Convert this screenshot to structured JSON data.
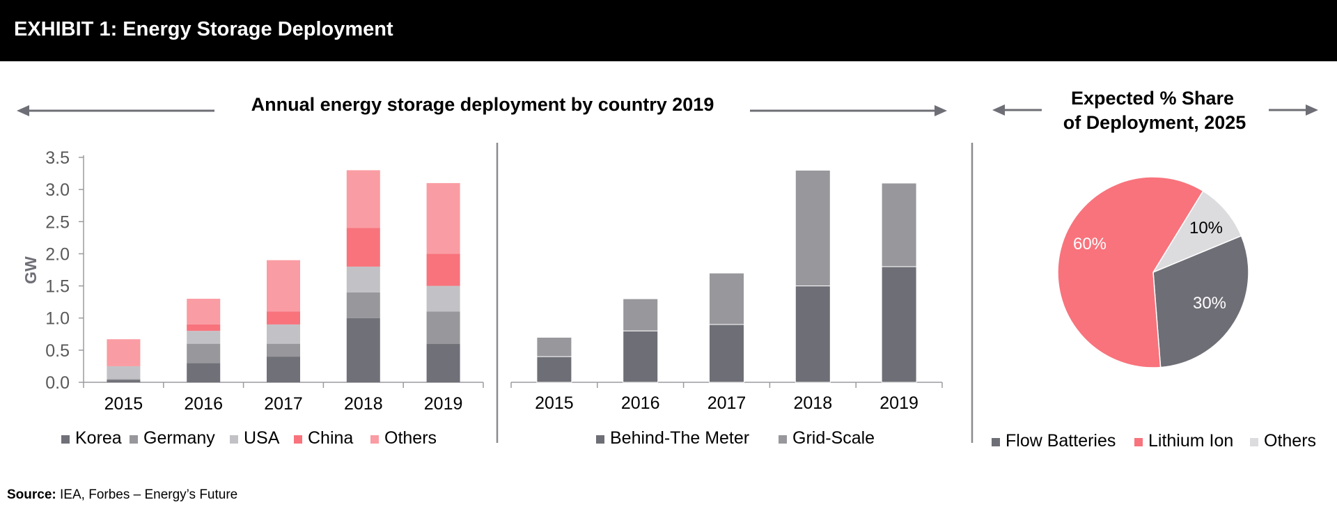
{
  "header": {
    "title": "EXHIBIT 1: Energy Storage Deployment"
  },
  "source": {
    "label": "Source:",
    "text": "IEA, Forbes – Energy’s Future"
  },
  "colors": {
    "korea": "#707078",
    "germany": "#97979c",
    "usa": "#c2c2c6",
    "china": "#f8737c",
    "others": "#fa9ca3",
    "behind": "#6e6e76",
    "grid": "#97979c",
    "flow": "#6e6e76",
    "lithium": "#f8737c",
    "pie_others": "#dcdcde"
  },
  "chart_data": [
    {
      "type": "bar",
      "stacked": true,
      "title": "Annual energy storage deployment by country 2019",
      "ylabel": "GW",
      "ylim": [
        0,
        3.5
      ],
      "yticks": [
        "0.0",
        "0.5",
        "1.0",
        "1.5",
        "2.0",
        "2.5",
        "3.0",
        "3.5"
      ],
      "categories": [
        "2015",
        "2016",
        "2017",
        "2018",
        "2019"
      ],
      "legend_position": "bottom",
      "series": [
        {
          "name": "Korea",
          "color_key": "korea",
          "values": [
            0.04,
            0.3,
            0.4,
            1.0,
            0.6
          ]
        },
        {
          "name": "Germany",
          "color_key": "germany",
          "values": [
            0.01,
            0.3,
            0.2,
            0.4,
            0.5
          ]
        },
        {
          "name": "USA",
          "color_key": "usa",
          "values": [
            0.2,
            0.2,
            0.3,
            0.4,
            0.4
          ]
        },
        {
          "name": "China",
          "color_key": "china",
          "values": [
            0.0,
            0.1,
            0.2,
            0.6,
            0.5
          ]
        },
        {
          "name": "Others",
          "color_key": "others",
          "values": [
            0.42,
            0.4,
            0.8,
            0.9,
            1.1
          ]
        }
      ]
    },
    {
      "type": "bar",
      "stacked": true,
      "ylim": [
        0,
        3.5
      ],
      "categories": [
        "2015",
        "2016",
        "2017",
        "2018",
        "2019"
      ],
      "legend_position": "bottom",
      "series": [
        {
          "name": "Behind-The Meter",
          "color_key": "behind",
          "values": [
            0.4,
            0.8,
            0.9,
            1.5,
            1.8
          ]
        },
        {
          "name": "Grid-Scale",
          "color_key": "grid",
          "values": [
            0.3,
            0.5,
            0.8,
            1.8,
            1.3
          ]
        }
      ]
    },
    {
      "type": "pie",
      "title_lines": [
        "Expected % Share",
        "of Deployment, 2025"
      ],
      "legend_position": "bottom",
      "slices": [
        {
          "name": "Flow Batteries",
          "value": 30,
          "label": "30%",
          "color_key": "flow"
        },
        {
          "name": "Lithium Ion",
          "value": 60,
          "label": "60%",
          "color_key": "lithium"
        },
        {
          "name": "Others",
          "value": 10,
          "label": "10%",
          "color_key": "pie_others"
        }
      ]
    }
  ]
}
